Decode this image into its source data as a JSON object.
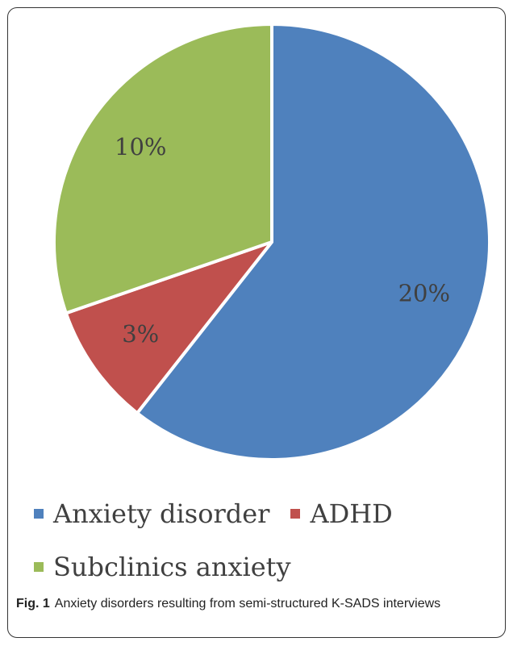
{
  "chart_data": {
    "type": "pie",
    "slices": [
      {
        "label": "Anxiety disorder",
        "value": 20,
        "display": "20%",
        "color": "#4F81BD"
      },
      {
        "label": "ADHD",
        "value": 3,
        "display": "3%",
        "color": "#C0504D"
      },
      {
        "label": "Subclinics anxiety",
        "value": 10,
        "display": "10%",
        "color": "#9BBB59"
      }
    ],
    "legend_position": "bottom"
  },
  "caption": {
    "fig_label": "Fig. 1",
    "text": "Anxiety disorders resulting from semi-structured K-SADS interviews"
  }
}
